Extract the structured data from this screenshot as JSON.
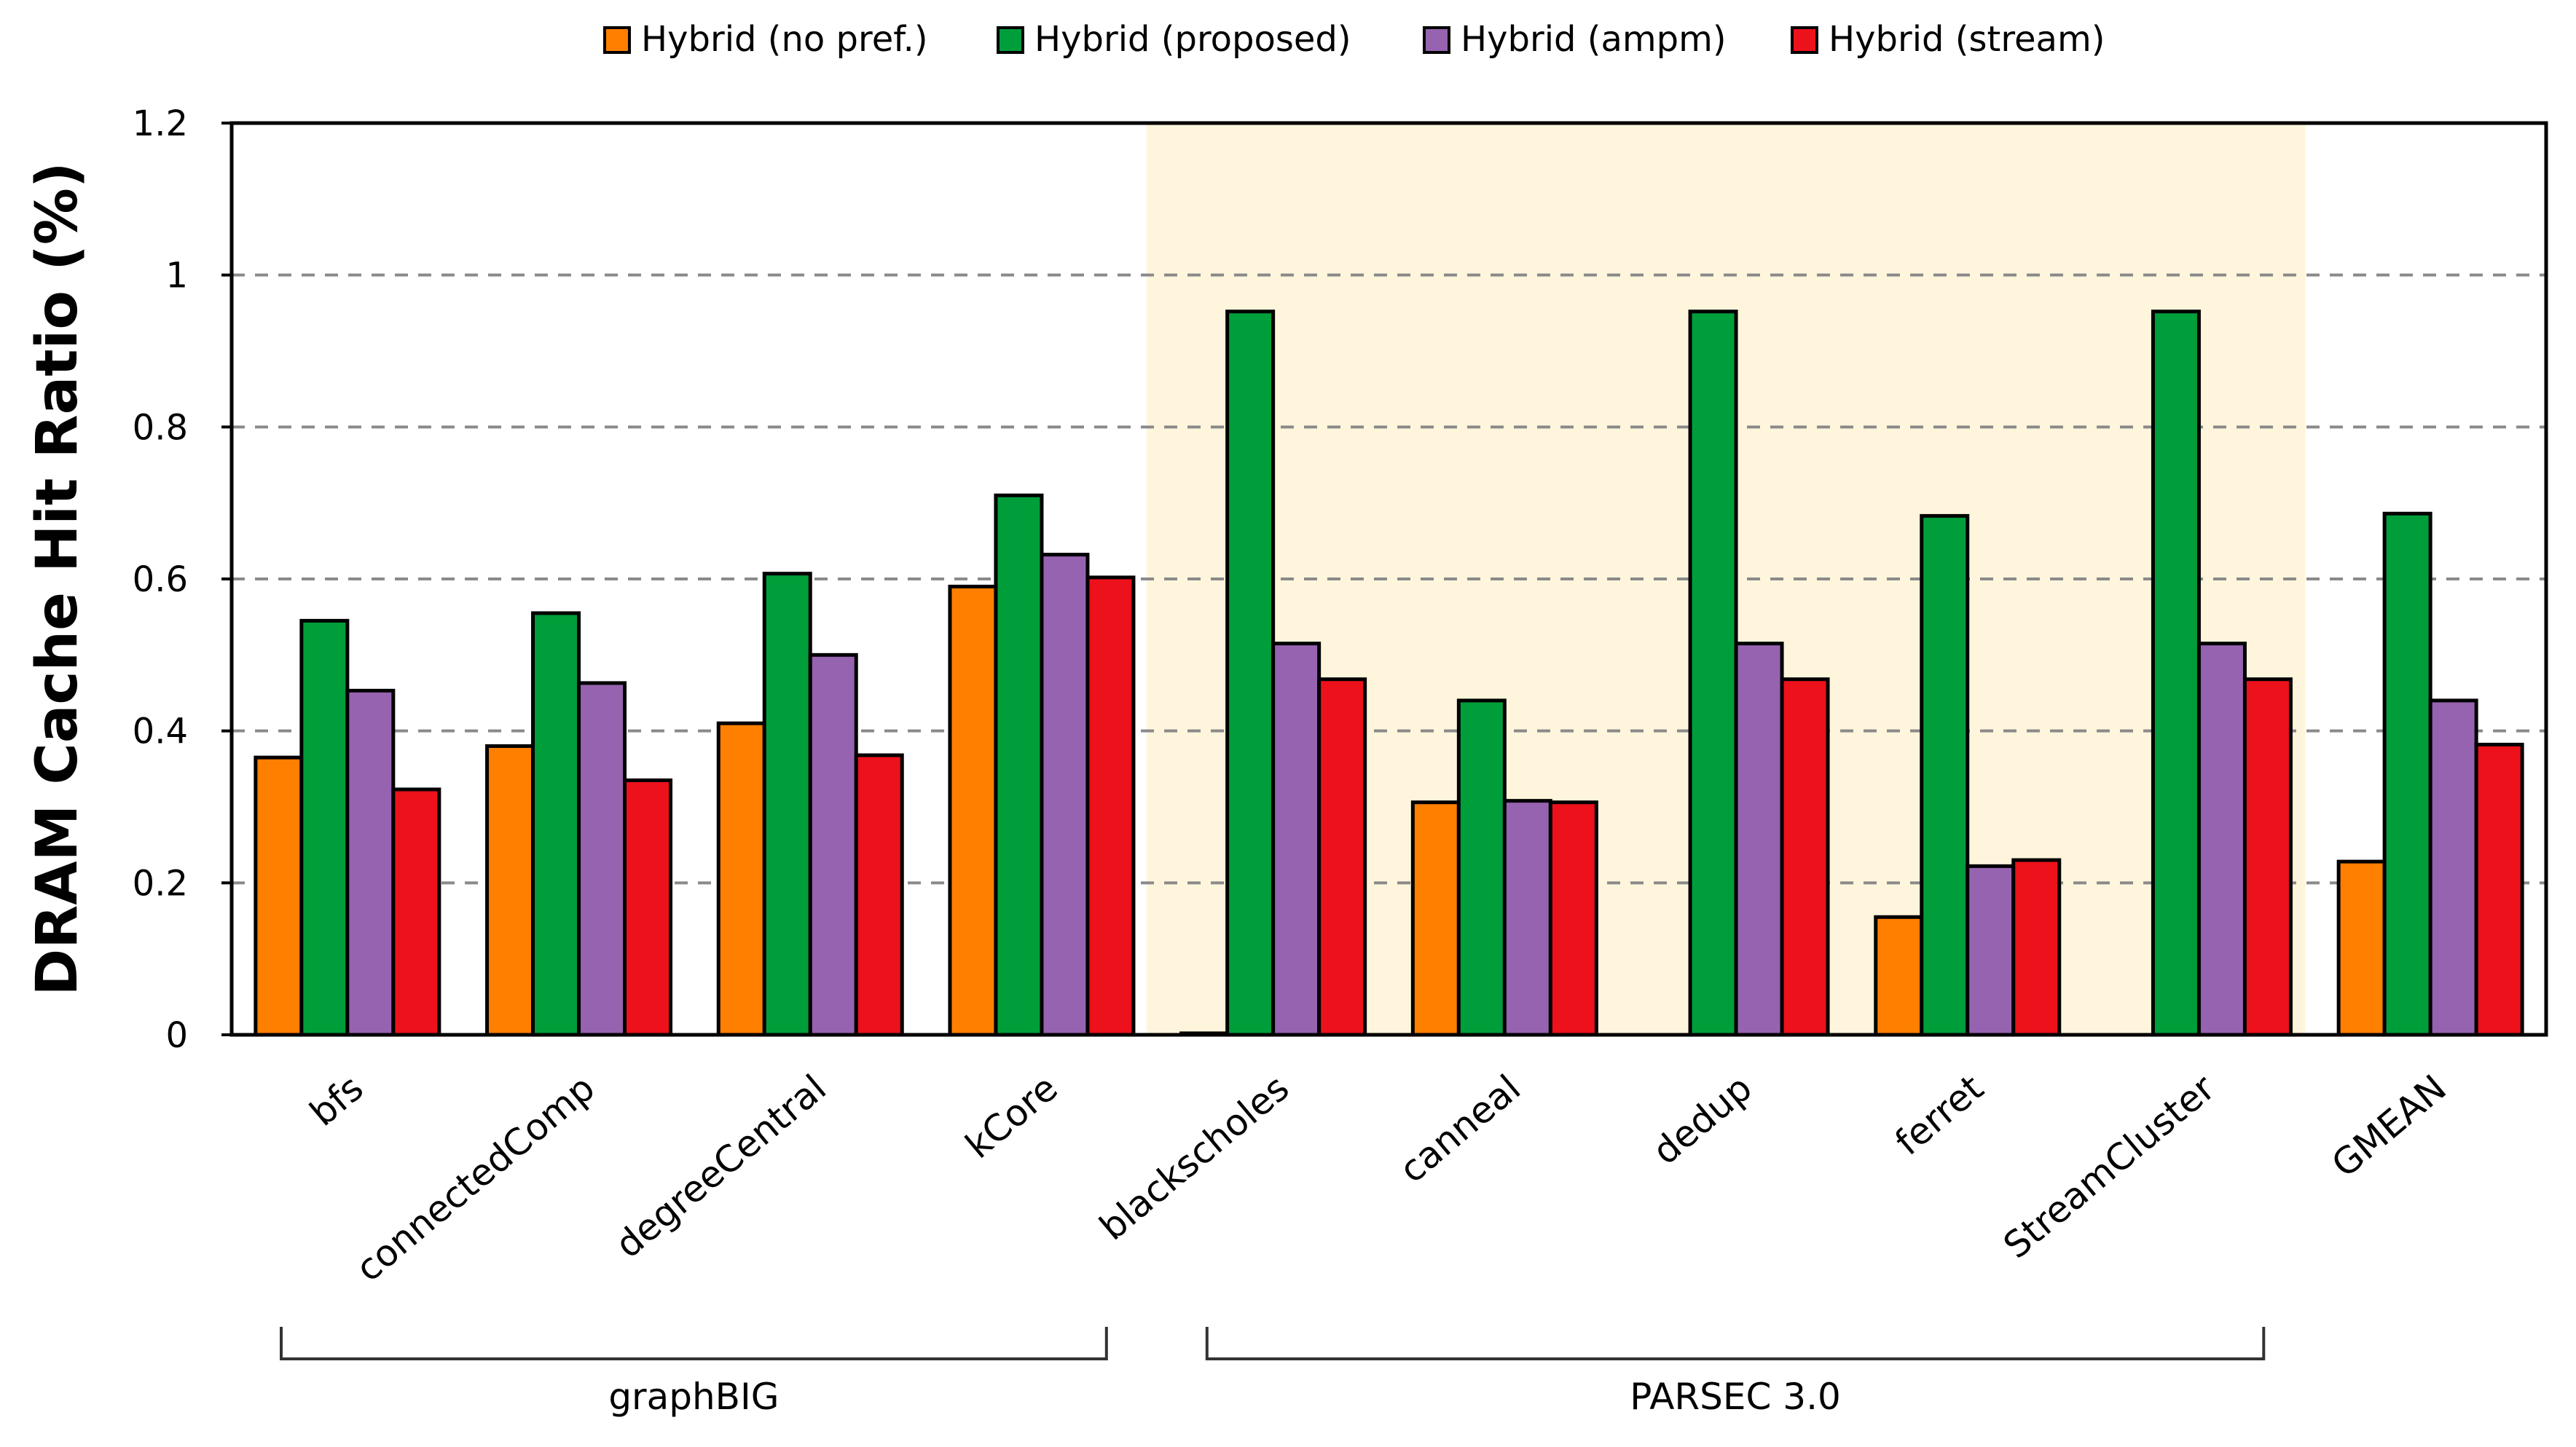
{
  "chart_data": {
    "type": "bar",
    "title": "",
    "xlabel": "",
    "ylabel": "DRAM Cache Hit Ratio (%)",
    "ylim": [
      0,
      1.2
    ],
    "yticks": [
      "0",
      "0.2",
      "0.4",
      "0.6",
      "0.8",
      "1",
      "1.2"
    ],
    "grid": true,
    "legend_position": "top",
    "categories": [
      "bfs",
      "connectedComp",
      "degreeCentral",
      "kCore",
      "blackscholes",
      "canneal",
      "dedup",
      "ferret",
      "StreamCluster",
      "GMEAN"
    ],
    "series": [
      {
        "name": "Hybrid (no pref.)",
        "color": "#ff7f00",
        "values": [
          0.365,
          0.38,
          0.41,
          0.59,
          0.002,
          0.306,
          0,
          0.155,
          0,
          0.228
        ]
      },
      {
        "name": "Hybrid (proposed)",
        "color": "#009e3a",
        "values": [
          0.545,
          0.555,
          0.607,
          0.71,
          0.952,
          0.44,
          0.952,
          0.683,
          0.952,
          0.686
        ]
      },
      {
        "name": "Hybrid (ampm)",
        "color": "#9663b0",
        "values": [
          0.453,
          0.463,
          0.5,
          0.632,
          0.515,
          0.308,
          0.515,
          0.222,
          0.515,
          0.44
        ]
      },
      {
        "name": "Hybrid (stream)",
        "color": "#ed111b",
        "values": [
          0.323,
          0.335,
          0.368,
          0.602,
          0.468,
          0.306,
          0.468,
          0.23,
          0.468,
          0.382
        ]
      }
    ],
    "groups": [
      {
        "label": "graphBIG",
        "from": 0,
        "to": 3
      },
      {
        "label": "PARSEC 3.0",
        "from": 4,
        "to": 8,
        "shaded": true,
        "shade_color": "#fff5dc"
      }
    ]
  }
}
